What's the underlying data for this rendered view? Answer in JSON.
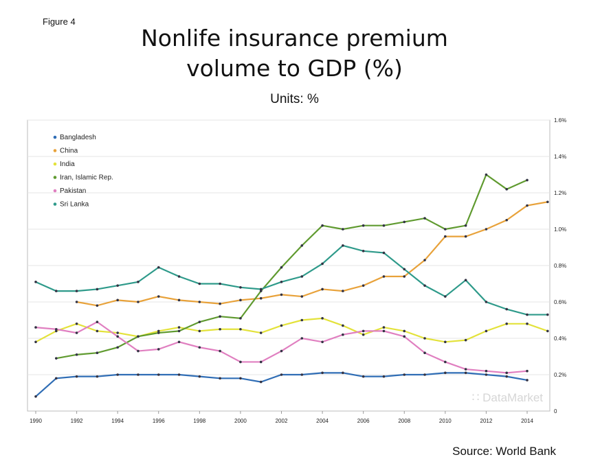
{
  "figure_label": "Figure 4",
  "source": "Source: World Bank",
  "watermark": "DataMarket",
  "chart_data": {
    "type": "line",
    "title": "Nonlife insurance premium volume to GDP (%)",
    "subtitle": "Units: %",
    "xlabel": "",
    "ylabel": "",
    "xlim": [
      1990,
      2015
    ],
    "ylim": [
      0,
      1.6
    ],
    "y_axis_side": "right",
    "x_ticks": [
      "1990",
      "1992",
      "1994",
      "1996",
      "1998",
      "2000",
      "2002",
      "2004",
      "2006",
      "2008",
      "2010",
      "2012",
      "2014"
    ],
    "y_ticks": [
      "0",
      "0.2%",
      "0.4%",
      "0.6%",
      "0.8%",
      "1.0%",
      "1.2%",
      "1.4%",
      "1.6%"
    ],
    "grid": true,
    "legend": "top-left",
    "x": [
      1990,
      1991,
      1992,
      1993,
      1994,
      1995,
      1996,
      1997,
      1998,
      1999,
      2000,
      2001,
      2002,
      2003,
      2004,
      2005,
      2006,
      2007,
      2008,
      2009,
      2010,
      2011,
      2012,
      2013,
      2014,
      2015
    ],
    "series": [
      {
        "name": "Bangladesh",
        "color": "#2f6db5",
        "values": [
          0.08,
          0.18,
          0.19,
          0.19,
          0.2,
          0.2,
          0.2,
          0.2,
          0.19,
          0.18,
          0.18,
          0.16,
          0.2,
          0.2,
          0.21,
          0.21,
          0.19,
          0.19,
          0.2,
          0.2,
          0.21,
          0.21,
          0.2,
          0.19,
          0.17,
          null
        ]
      },
      {
        "name": "China",
        "color": "#e8a23a",
        "values": [
          null,
          null,
          0.6,
          0.58,
          0.61,
          0.6,
          0.63,
          0.61,
          0.6,
          0.59,
          0.61,
          0.62,
          0.64,
          0.63,
          0.67,
          0.66,
          0.69,
          0.74,
          0.74,
          0.83,
          0.96,
          0.96,
          1.0,
          1.05,
          1.13,
          1.15
        ]
      },
      {
        "name": "India",
        "color": "#e3e23a",
        "values": [
          0.38,
          0.44,
          0.48,
          0.44,
          0.43,
          0.41,
          0.44,
          0.46,
          0.44,
          0.45,
          0.45,
          0.43,
          0.47,
          0.5,
          0.51,
          0.47,
          0.42,
          0.46,
          0.44,
          0.4,
          0.38,
          0.39,
          0.44,
          0.48,
          0.48,
          0.44
        ]
      },
      {
        "name": "Iran, Islamic Rep.",
        "color": "#5f9a2f",
        "values": [
          null,
          0.29,
          0.31,
          0.32,
          0.35,
          0.41,
          0.43,
          0.44,
          0.49,
          0.52,
          0.51,
          0.66,
          0.79,
          0.91,
          1.02,
          1.0,
          1.02,
          1.02,
          1.04,
          1.06,
          1.0,
          1.02,
          1.3,
          1.22,
          1.27,
          null
        ]
      },
      {
        "name": "Pakistan",
        "color": "#e07fc0",
        "values": [
          0.46,
          0.45,
          0.43,
          0.49,
          0.41,
          0.33,
          0.34,
          0.38,
          0.35,
          0.33,
          0.27,
          0.27,
          0.33,
          0.4,
          0.38,
          0.42,
          0.44,
          0.44,
          0.41,
          0.32,
          0.27,
          0.23,
          0.22,
          0.21,
          0.22,
          null
        ]
      },
      {
        "name": "Sri Lanka",
        "color": "#2e9a8a",
        "values": [
          0.71,
          0.66,
          0.66,
          0.67,
          0.69,
          0.71,
          0.79,
          0.74,
          0.7,
          0.7,
          0.68,
          0.67,
          0.71,
          0.74,
          0.81,
          0.91,
          0.88,
          0.87,
          0.78,
          0.69,
          0.63,
          0.72,
          0.6,
          0.56,
          0.53,
          0.53
        ]
      }
    ]
  }
}
